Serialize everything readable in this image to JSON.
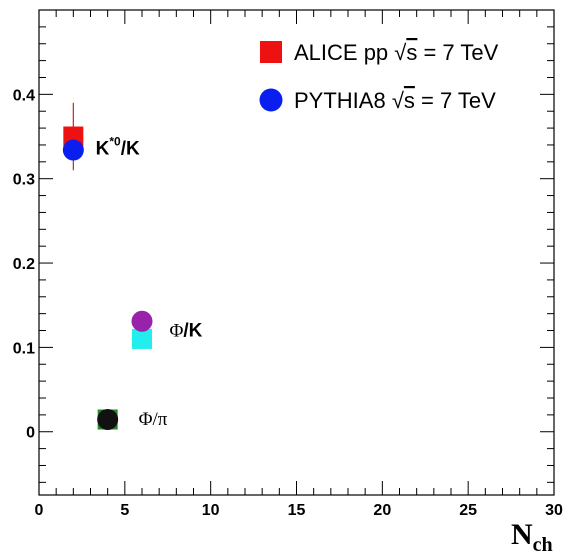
{
  "chart_data": {
    "type": "scatter",
    "title": "",
    "xlabel": "N",
    "xlabel_sub": "ch",
    "ylabel": "",
    "xlim": [
      0,
      30
    ],
    "ylim": [
      -0.075,
      0.5
    ],
    "x_ticks": [
      0,
      5,
      10,
      15,
      20,
      25,
      30
    ],
    "x_tick_labels": [
      "0",
      "5",
      "10",
      "15",
      "20",
      "25",
      "30"
    ],
    "y_ticks": [
      0,
      0.1,
      0.2,
      0.3,
      0.4
    ],
    "y_tick_labels": [
      "0",
      "0.1",
      "0.2",
      "0.3",
      "0.4"
    ],
    "grid": false,
    "legend": {
      "placement": "top-right",
      "entries": [
        {
          "marker": "square",
          "color": "#ee1111",
          "prefix": "ALICE pp ",
          "sqrt": "√",
          "s": "s",
          "suffix": " = 7 TeV"
        },
        {
          "marker": "circle",
          "color": "#0a1ef0",
          "prefix": "PYTHIA8 ",
          "sqrt": "√",
          "s": "s",
          "suffix": " = 7 TeV"
        }
      ]
    },
    "series": [
      {
        "group": "ALICE",
        "marker": "square",
        "points": [
          {
            "x": 2,
            "y": 0.35,
            "yerr": 0.04,
            "color": "#ee1111",
            "errcolor": "#cc2222"
          },
          {
            "x": 6,
            "y": 0.11,
            "yerr": 0.012,
            "color": "#22eeee",
            "errcolor": "#22cccc"
          },
          {
            "x": 4,
            "y": 0.0145,
            "yerr": 0.002,
            "color": "#228b22",
            "errcolor": "#116611"
          }
        ]
      },
      {
        "group": "PYTHIA8",
        "marker": "circle",
        "points": [
          {
            "x": 2,
            "y": 0.334,
            "color": "#0a1ef0"
          },
          {
            "x": 6,
            "y": 0.131,
            "color": "#9922aa"
          },
          {
            "x": 4,
            "y": 0.0145,
            "color": "#111111"
          }
        ]
      }
    ],
    "annotations": [
      {
        "name": "kstar-k",
        "parts": [
          {
            "t": "K",
            "cls": "sans"
          },
          {
            "t": "*0",
            "cls": "sans",
            "sup": true
          },
          {
            "t": "/K",
            "cls": "sans"
          }
        ],
        "x": 3.3,
        "y": 0.337
      },
      {
        "name": "phi-k",
        "parts": [
          {
            "t": "Φ",
            "cls": "serif"
          },
          {
            "t": "/K",
            "cls": "sans"
          }
        ],
        "x": 7.6,
        "y": 0.121
      },
      {
        "name": "phi-pi",
        "parts": [
          {
            "t": "Φ/π",
            "cls": "serif"
          }
        ],
        "x": 5.8,
        "y": 0.016
      }
    ]
  }
}
